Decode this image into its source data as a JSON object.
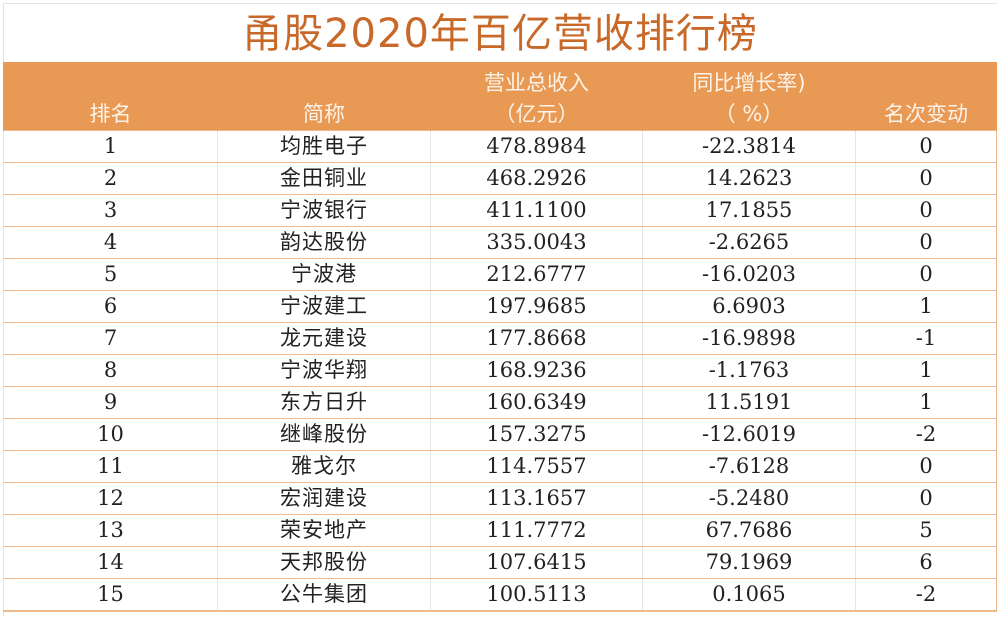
{
  "title": "甬股2020年百亿营收排行榜",
  "header": {
    "rank": {
      "l1": "",
      "l2": "排名"
    },
    "name": {
      "l1": "",
      "l2": "简称"
    },
    "revenue": {
      "l1": "营业总收入",
      "l2": "（亿元）"
    },
    "growth": {
      "l1": "同比增长率)",
      "l2": "（ %）"
    },
    "change": {
      "l1": "",
      "l2": "名次变动"
    }
  },
  "rows": [
    {
      "rank": "1",
      "name": "均胜电子",
      "revenue": "478.8984",
      "growth": "-22.3814",
      "change": "0"
    },
    {
      "rank": "2",
      "name": "金田铜业",
      "revenue": "468.2926",
      "growth": "14.2623",
      "change": "0"
    },
    {
      "rank": "3",
      "name": "宁波银行",
      "revenue": "411.1100",
      "growth": "17.1855",
      "change": "0"
    },
    {
      "rank": "4",
      "name": "韵达股份",
      "revenue": "335.0043",
      "growth": "-2.6265",
      "change": "0"
    },
    {
      "rank": "5",
      "name": "宁波港",
      "revenue": "212.6777",
      "growth": "-16.0203",
      "change": "0"
    },
    {
      "rank": "6",
      "name": "宁波建工",
      "revenue": "197.9685",
      "growth": "6.6903",
      "change": "1"
    },
    {
      "rank": "7",
      "name": "龙元建设",
      "revenue": "177.8668",
      "growth": "-16.9898",
      "change": "-1"
    },
    {
      "rank": "8",
      "name": "宁波华翔",
      "revenue": "168.9236",
      "growth": "-1.1763",
      "change": "1"
    },
    {
      "rank": "9",
      "name": "东方日升",
      "revenue": "160.6349",
      "growth": "11.5191",
      "change": "1"
    },
    {
      "rank": "10",
      "name": "继峰股份",
      "revenue": "157.3275",
      "growth": "-12.6019",
      "change": "-2"
    },
    {
      "rank": "11",
      "name": "雅戈尔",
      "revenue": "114.7557",
      "growth": "-7.6128",
      "change": "0"
    },
    {
      "rank": "12",
      "name": "宏润建设",
      "revenue": "113.1657",
      "growth": "-5.2480",
      "change": "0"
    },
    {
      "rank": "13",
      "name": "荣安地产",
      "revenue": "111.7772",
      "growth": "67.7686",
      "change": "5"
    },
    {
      "rank": "14",
      "name": "天邦股份",
      "revenue": "107.6415",
      "growth": "79.1969",
      "change": "6"
    },
    {
      "rank": "15",
      "name": "公牛集团",
      "revenue": "100.5113",
      "growth": "0.1065",
      "change": "-2"
    }
  ],
  "colors": {
    "title": "#c8692a",
    "header_bg": "#e89a55",
    "header_text": "#fdf3e8",
    "row_border": "#f0b98a"
  }
}
